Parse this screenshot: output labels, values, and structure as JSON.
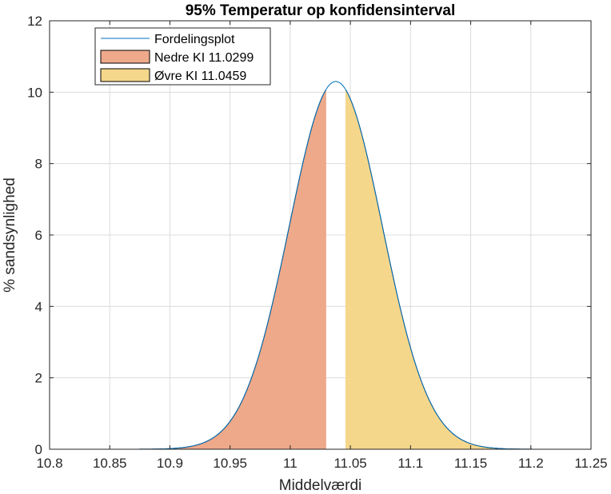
{
  "chart_data": {
    "type": "area",
    "title": "95% Temperatur op konfidensinterval",
    "xlabel": "Middelværdi",
    "ylabel": "% sandsynlighed",
    "xlim": [
      10.8,
      11.25
    ],
    "ylim": [
      0,
      12
    ],
    "xticks": [
      "10.8",
      "10.85",
      "10.9",
      "10.95",
      "11",
      "11.05",
      "11.1",
      "11.15",
      "11.2",
      "11.25"
    ],
    "yticks": [
      "0",
      "2",
      "4",
      "6",
      "8",
      "10",
      "12"
    ],
    "grid": true,
    "legend_position": "top-left",
    "distribution": {
      "mean": 11.0379,
      "std": 0.0387,
      "peak": 10.3,
      "x_range": [
        10.83,
        11.25
      ]
    },
    "series": [
      {
        "name": "Fordelingsplot",
        "kind": "line",
        "color": "#0072BD"
      },
      {
        "name": "Nedre KI 11.0299",
        "kind": "fill",
        "from": 10.83,
        "to": 11.0299,
        "color": "#EDA98A"
      },
      {
        "name": "Øvre KI 11.0459",
        "kind": "fill",
        "from": 11.0459,
        "to": 11.25,
        "color": "#F5D78C"
      }
    ]
  }
}
